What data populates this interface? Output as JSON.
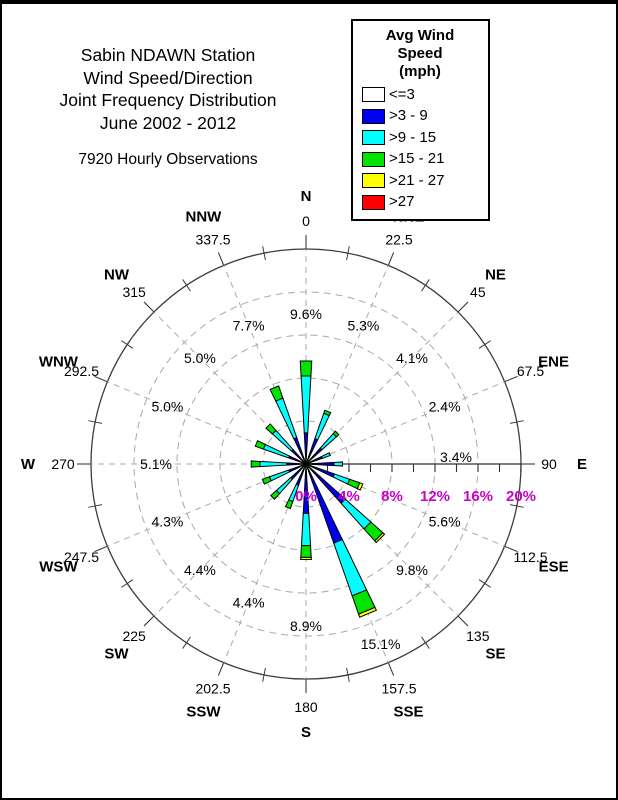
{
  "header": {
    "title_lines": [
      "Sabin NDAWN Station",
      "Wind Speed/Direction",
      "Joint Frequency Distribution",
      "June 2002 - 2012"
    ],
    "observations": "7920 Hourly Observations"
  },
  "legend": {
    "title_line1": "Avg Wind Speed",
    "title_line2": "(mph)",
    "items": [
      {
        "label": "<=3",
        "color": "#FFFFFF"
      },
      {
        "label": ">3 - 9",
        "color": "#0000F0"
      },
      {
        "label": ">9 - 15",
        "color": "#00FFFF"
      },
      {
        "label": ">15 - 21",
        "color": "#00E400"
      },
      {
        "label": ">21 - 27",
        "color": "#FFFF00"
      },
      {
        "label": ">27",
        "color": "#FF0000"
      }
    ]
  },
  "chart_data": {
    "type": "bar",
    "variant": "wind-rose-polar-stacked",
    "title": "Sabin NDAWN Station Wind Speed/Direction Joint Frequency Distribution, June 2002 - 2012",
    "observations": 7920,
    "speed_bins_mph": [
      "<=3",
      ">3 - 9",
      ">9 - 15",
      ">15 - 21",
      ">21 - 27",
      ">27"
    ],
    "bin_colors": [
      "#FFFFFF",
      "#0000F0",
      "#00FFFF",
      "#00E400",
      "#FFFF00",
      "#FF0000"
    ],
    "radial_axis": {
      "unit": "percent frequency",
      "tick_values": [
        0,
        4,
        8,
        12,
        16,
        20
      ],
      "tick_labels": [
        "0%",
        "4%",
        "8%",
        "12%",
        "16%",
        "20%"
      ],
      "max": 20,
      "ring_step": 4,
      "minor_tick_step": 2,
      "label_color": "#CC00CC",
      "grid": "dashed rings at 4/8/12/16, solid outer circle at 20"
    },
    "directions": [
      {
        "name": "N",
        "degrees": "0",
        "total": 9.6,
        "label": "9.6%",
        "segments": [
          0,
          2.9,
          5.3,
          1.4,
          0,
          0
        ]
      },
      {
        "name": "NNE",
        "degrees": "22.5",
        "total": 5.3,
        "label": "5.3%",
        "segments": [
          0,
          2.5,
          2.5,
          0.3,
          0,
          0
        ]
      },
      {
        "name": "NE",
        "degrees": "45",
        "total": 4.1,
        "label": "4.1%",
        "segments": [
          0,
          2.0,
          1.8,
          0.3,
          0,
          0
        ]
      },
      {
        "name": "ENE",
        "degrees": "67.5",
        "total": 2.4,
        "label": "2.4%",
        "segments": [
          0,
          1.6,
          0.8,
          0,
          0,
          0
        ]
      },
      {
        "name": "E",
        "degrees": "90",
        "total": 3.4,
        "label": "3.4%",
        "segments": [
          0,
          2.6,
          0.8,
          0,
          0,
          0
        ]
      },
      {
        "name": "ESE",
        "degrees": "112.5",
        "total": 5.6,
        "label": "5.6%",
        "segments": [
          0,
          2.8,
          1.5,
          1.0,
          0.3,
          0
        ]
      },
      {
        "name": "SE",
        "degrees": "135",
        "total": 9.8,
        "label": "9.8%",
        "segments": [
          0,
          4.9,
          3.2,
          1.5,
          0.2,
          0
        ]
      },
      {
        "name": "SSE",
        "degrees": "157.5",
        "total": 15.1,
        "label": "15.1%",
        "segments": [
          0,
          7.8,
          5.2,
          1.8,
          0.3,
          0
        ]
      },
      {
        "name": "S",
        "degrees": "180",
        "total": 8.9,
        "label": "8.9%",
        "segments": [
          0,
          4.6,
          3.0,
          1.1,
          0.2,
          0
        ]
      },
      {
        "name": "SSW",
        "degrees": "202.5",
        "total": 4.4,
        "label": "4.4%",
        "segments": [
          0,
          2.1,
          1.6,
          0.7,
          0,
          0
        ]
      },
      {
        "name": "SW",
        "degrees": "225",
        "total": 4.4,
        "label": "4.4%",
        "segments": [
          0,
          1.9,
          1.8,
          0.7,
          0,
          0
        ]
      },
      {
        "name": "WSW",
        "degrees": "247.5",
        "total": 4.3,
        "label": "4.3%",
        "segments": [
          0,
          1.7,
          1.9,
          0.7,
          0,
          0
        ]
      },
      {
        "name": "W",
        "degrees": "270",
        "total": 5.1,
        "label": "5.1%",
        "segments": [
          0,
          1.8,
          2.5,
          0.8,
          0,
          0
        ]
      },
      {
        "name": "WNW",
        "degrees": "292.5",
        "total": 5.0,
        "label": "5.0%",
        "segments": [
          0,
          1.7,
          2.5,
          0.8,
          0,
          0
        ]
      },
      {
        "name": "NW",
        "degrees": "315",
        "total": 5.0,
        "label": "5.0%",
        "segments": [
          0,
          1.8,
          2.4,
          0.8,
          0,
          0
        ]
      },
      {
        "name": "NNW",
        "degrees": "337.5",
        "total": 7.7,
        "label": "7.7%",
        "segments": [
          0,
          2.6,
          3.9,
          1.2,
          0,
          0
        ]
      }
    ]
  }
}
